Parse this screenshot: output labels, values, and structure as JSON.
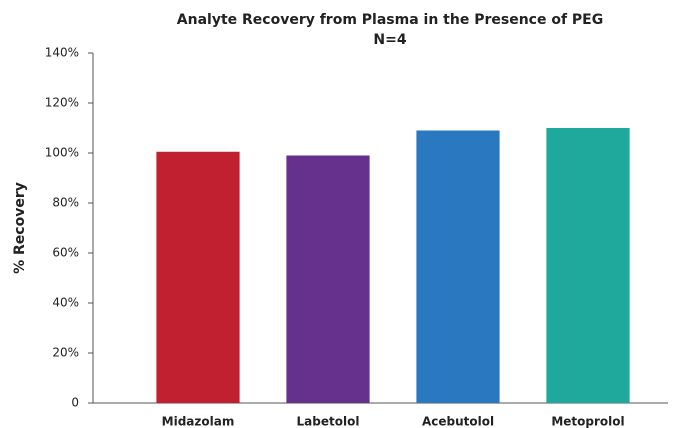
{
  "chart_data": {
    "type": "bar",
    "title": "Analyte Recovery from Plasma in the Presence of PEG",
    "subtitle": "N=4",
    "y_label": "% Recovery",
    "categories": [
      "Midazolam",
      "Labetolol",
      "Acebutolol",
      "Metoprolol"
    ],
    "values": [
      100.5,
      99,
      109,
      110
    ],
    "colors": [
      "#c0202f",
      "#66318c",
      "#2a78c0",
      "#1fa89c"
    ],
    "ylim": [
      0,
      140
    ],
    "yticks": [
      0,
      {
        "value": 20,
        "label": "20%"
      },
      {
        "value": 40,
        "label": "40%"
      },
      {
        "value": 60,
        "label": "60%"
      },
      {
        "value": 80,
        "label": "80%"
      },
      {
        "value": 100,
        "label": "100%"
      },
      {
        "value": 120,
        "label": "120%"
      },
      {
        "value": 140,
        "label": "140%"
      }
    ],
    "grid": false
  }
}
